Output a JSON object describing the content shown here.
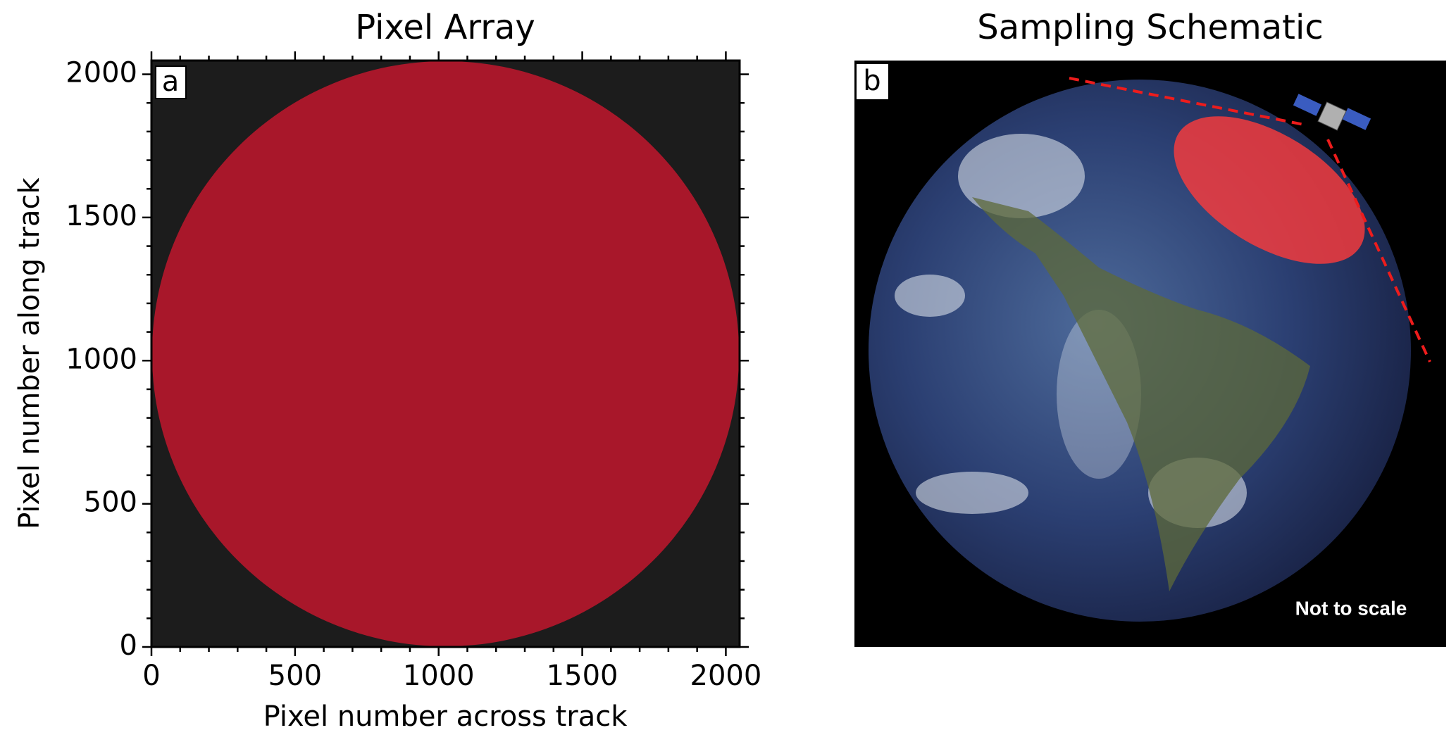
{
  "chart_data": {
    "type": "disk",
    "title": "Pixel Array",
    "panel_label": "a",
    "xlabel": "Pixel number across track",
    "ylabel": "Pixel number along track",
    "xlim": [
      0,
      2048
    ],
    "ylim": [
      0,
      2048
    ],
    "xticks": [
      0,
      500,
      1000,
      1500,
      2000
    ],
    "yticks": [
      0,
      500,
      1000,
      1500,
      2000
    ],
    "xminorticks": [
      100,
      200,
      300,
      400,
      600,
      700,
      800,
      900,
      1100,
      1200,
      1300,
      1400,
      1600,
      1700,
      1800,
      1900
    ],
    "yminorticks": [
      100,
      200,
      300,
      400,
      600,
      700,
      800,
      900,
      1100,
      1200,
      1300,
      1400,
      1600,
      1700,
      1800,
      1900
    ],
    "disk": {
      "cx": 1024,
      "cy": 1024,
      "r": 1022
    },
    "color": "#a8172a",
    "background": "#1c1c1c"
  },
  "schematic": {
    "title": "Sampling Schematic",
    "panel_label": "b",
    "note": "Not to scale"
  }
}
